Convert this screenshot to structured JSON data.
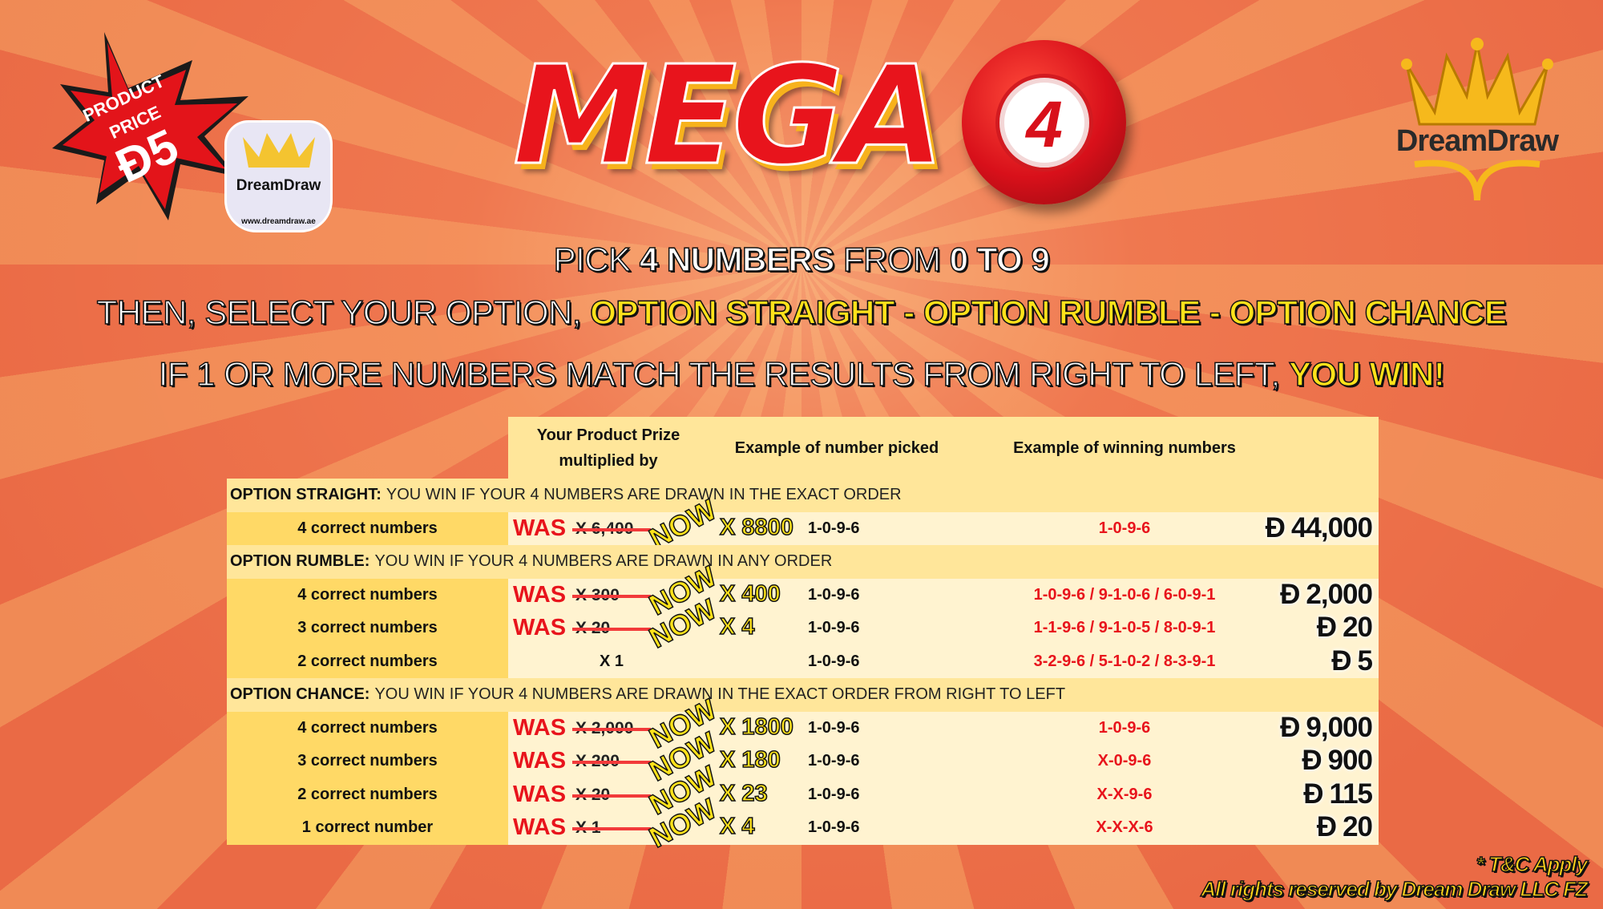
{
  "badge": {
    "line1": "PRODUCT",
    "line2": "PRICE",
    "currency": "Đ",
    "price": "5"
  },
  "keychain": {
    "brand": "DreamDraw",
    "url": "www.dreamdraw.ae"
  },
  "title": {
    "word": "MEGA",
    "ball_number": "4"
  },
  "logo": {
    "brand": "DreamDraw"
  },
  "headlines": {
    "line1": {
      "a": "PICK ",
      "b": "4 NUMBERS",
      "c": " FROM ",
      "d": "0 TO 9"
    },
    "line2": {
      "a": "THEN, SELECT YOUR OPTION, ",
      "b": "OPTION STRAIGHT - OPTION RUMBLE - OPTION CHANCE"
    },
    "line3": {
      "a": "IF 1 OR MORE NUMBERS  MATCH THE RESULTS FROM RIGHT TO LEFT, ",
      "b": "YOU WIN!"
    }
  },
  "table": {
    "headers": {
      "prize_line1": "Your Product Prize",
      "prize_line2": "multiplied by",
      "picked": "Example of number picked",
      "winning": "Example of winning numbers"
    },
    "currency": "Đ",
    "sections": [
      {
        "name": "OPTION STRAIGHT:",
        "desc": "YOU WIN IF YOUR 4 NUMBERS ARE DRAWN IN THE EXACT ORDER",
        "rows": [
          {
            "label": "4 correct numbers",
            "was": "WAS",
            "old": "X 6,400",
            "now": "NOW",
            "new": "X 8800",
            "picked": "1-0-9-6",
            "winning": "1-0-9-6",
            "amount": "44,000"
          }
        ]
      },
      {
        "name": "OPTION RUMBLE:",
        "desc": "YOU WIN IF YOUR 4 NUMBERS ARE DRAWN IN ANY ORDER",
        "rows": [
          {
            "label": "4 correct numbers",
            "was": "WAS",
            "old": "X 300",
            "now": "NOW",
            "new": "X 400",
            "picked": "1-0-9-6",
            "winning": "1-0-9-6 / 9-1-0-6 / 6-0-9-1",
            "amount": "2,000"
          },
          {
            "label": "3 correct numbers",
            "was": "WAS",
            "old": "X 20",
            "now": "NOW",
            "new": "X 4",
            "picked": "1-0-9-6",
            "winning": "1-1-9-6 / 9-1-0-5 / 8-0-9-1",
            "amount": "20"
          },
          {
            "label": "2 correct numbers",
            "plain": "X 1",
            "picked": "1-0-9-6",
            "winning": "3-2-9-6 / 5-1-0-2 / 8-3-9-1",
            "amount": "5"
          }
        ]
      },
      {
        "name": "OPTION CHANCE:",
        "desc": "YOU WIN IF YOUR 4 NUMBERS ARE DRAWN IN THE EXACT ORDER FROM RIGHT TO LEFT",
        "rows": [
          {
            "label": "4 correct numbers",
            "was": "WAS",
            "old": "X 2,000",
            "now": "NOW",
            "new": "X 1800",
            "picked": "1-0-9-6",
            "winning": "1-0-9-6",
            "amount": "9,000"
          },
          {
            "label": "3 correct numbers",
            "was": "WAS",
            "old": "X 200",
            "now": "NOW",
            "new": "X 180",
            "picked": "1-0-9-6",
            "winning": "X-0-9-6",
            "amount": "900"
          },
          {
            "label": "2 correct numbers",
            "was": "WAS",
            "old": "X 20",
            "now": "NOW",
            "new": "X 23",
            "picked": "1-0-9-6",
            "winning": "X-X-9-6",
            "amount": "115"
          },
          {
            "label": "1 correct number",
            "was": "WAS",
            "old": "X 1",
            "now": "NOW",
            "new": "X 4",
            "picked": "1-0-9-6",
            "winning": "X-X-X-6",
            "amount": "20"
          }
        ]
      }
    ]
  },
  "footer": {
    "tc": "* T&C Apply",
    "rights": "All rights reserved by Dream Draw LLC FZ"
  },
  "colors": {
    "red": "#e8141c",
    "yellow": "#ffe21a",
    "header_bg": "#ffe69a",
    "label_bg": "#ffd966",
    "row_bg": "#fff3d0"
  }
}
